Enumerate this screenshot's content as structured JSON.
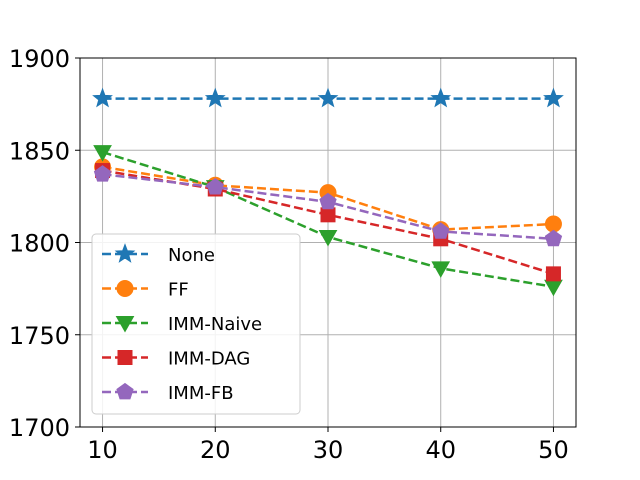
{
  "chart_data": {
    "type": "line",
    "title": "",
    "xlabel": "",
    "ylabel": "",
    "x": [
      10,
      20,
      30,
      40,
      50
    ],
    "xticks": [
      10,
      20,
      30,
      40,
      50
    ],
    "yticks": [
      1700,
      1750,
      1800,
      1850,
      1900
    ],
    "xlim": [
      8,
      52
    ],
    "ylim": [
      1700,
      1900
    ],
    "grid": true,
    "legend_position": "lower-left",
    "series": [
      {
        "name": "None",
        "color": "#1f77b4",
        "marker": "star",
        "linestyle": "dashed",
        "values": [
          1878,
          1878,
          1878,
          1878,
          1878
        ]
      },
      {
        "name": "FF",
        "color": "#ff7f0e",
        "marker": "circle",
        "linestyle": "dashed",
        "values": [
          1841,
          1831,
          1827,
          1807,
          1810
        ]
      },
      {
        "name": "IMM-Naive",
        "color": "#2ca02c",
        "marker": "triangle-down",
        "linestyle": "dashed",
        "values": [
          1849,
          1830,
          1803,
          1786,
          1776
        ]
      },
      {
        "name": "IMM-DAG",
        "color": "#d62728",
        "marker": "square",
        "linestyle": "dashed",
        "values": [
          1839,
          1829,
          1815,
          1802,
          1783
        ]
      },
      {
        "name": "IMM-FB",
        "color": "#9467bd",
        "marker": "pentagon",
        "linestyle": "dashed",
        "values": [
          1837,
          1830,
          1822,
          1806,
          1802
        ]
      }
    ]
  }
}
